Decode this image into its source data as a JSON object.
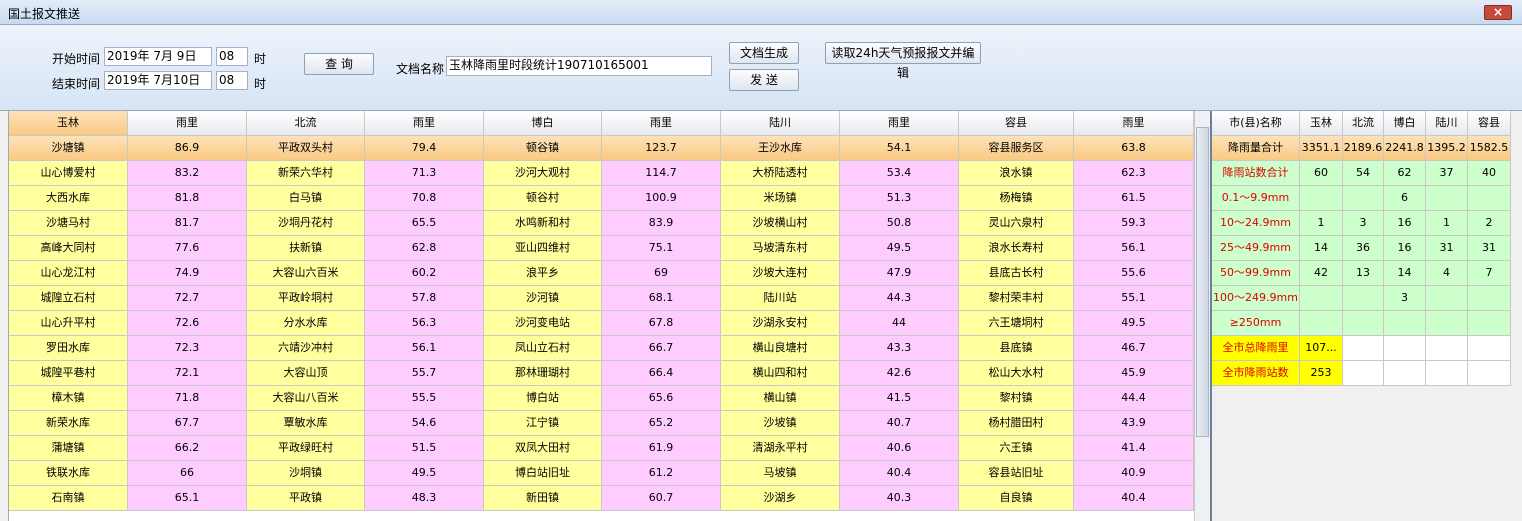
{
  "window": {
    "title": "国土报文推送"
  },
  "toolbar": {
    "start_label": "开始时间",
    "start_date": "2019年 7月 9日",
    "start_hour": "08",
    "hour_unit": "时",
    "end_label": "结束时间",
    "end_date": "2019年 7月10日",
    "end_hour": "08",
    "query_button": "查 询",
    "doc_name_label": "文档名称",
    "doc_name": "玉林降雨里时段统计190710165001",
    "generate_button": "文档生成",
    "send_button": "发 送",
    "forecast_button": "读取24h天气预报报文并编辑"
  },
  "left_table": {
    "headers": [
      "玉林",
      "雨里",
      "北流",
      "雨里",
      "博白",
      "雨里",
      "陆川",
      "雨里",
      "容县",
      "雨里"
    ],
    "rows": [
      [
        "沙塘镇",
        86.9,
        "平政双头村",
        79.4,
        "顿谷镇",
        123.7,
        "王沙水库",
        54.1,
        "容县服务区",
        63.8
      ],
      [
        "山心博爱村",
        83.2,
        "新荣六华村",
        71.3,
        "沙河大观村",
        114.7,
        "大桥陆透村",
        53.4,
        "浪水镇",
        62.3
      ],
      [
        "大西水库",
        81.8,
        "白马镇",
        70.8,
        "顿谷村",
        100.9,
        "米场镇",
        51.3,
        "杨梅镇",
        61.5
      ],
      [
        "沙塘马村",
        81.7,
        "沙垌丹花村",
        65.5,
        "水鸣新和村",
        83.9,
        "沙坡横山村",
        50.8,
        "灵山六泉村",
        59.3
      ],
      [
        "高峰大同村",
        77.6,
        "扶新镇",
        62.8,
        "亚山四维村",
        75.1,
        "马坡清东村",
        49.5,
        "浪水长寿村",
        56.1
      ],
      [
        "山心龙江村",
        74.9,
        "大容山六百米",
        60.2,
        "浪平乡",
        69,
        "沙坡大连村",
        47.9,
        "县底古长村",
        55.6
      ],
      [
        "城隍立石村",
        72.7,
        "平政岭垌村",
        57.8,
        "沙河镇",
        68.1,
        "陆川站",
        44.3,
        "黎村荣丰村",
        55.1
      ],
      [
        "山心升平村",
        72.6,
        "分水水库",
        56.3,
        "沙河变电站",
        67.8,
        "沙湖永安村",
        44,
        "六王塘垌村",
        49.5
      ],
      [
        "罗田水库",
        72.3,
        "六靖沙冲村",
        56.1,
        "凤山立石村",
        66.7,
        "横山良塘村",
        43.3,
        "县底镇",
        46.7
      ],
      [
        "城隍平巷村",
        72.1,
        "大容山顶",
        55.7,
        "那林珊瑚村",
        66.4,
        "横山四和村",
        42.6,
        "松山大水村",
        45.9
      ],
      [
        "樟木镇",
        71.8,
        "大容山八百米",
        55.5,
        "博白站",
        65.6,
        "横山镇",
        41.5,
        "黎村镇",
        44.4
      ],
      [
        "新荣水库",
        67.7,
        "覃敏水库",
        54.6,
        "江宁镇",
        65.2,
        "沙坡镇",
        40.7,
        "杨村腊田村",
        43.9
      ],
      [
        "蒲塘镇",
        66.2,
        "平政绿旺村",
        51.5,
        "双凤大田村",
        61.9,
        "清湖永平村",
        40.6,
        "六王镇",
        41.4
      ],
      [
        "铁联水库",
        66,
        "沙垌镇",
        49.5,
        "博白站旧址",
        61.2,
        "马坡镇",
        40.4,
        "容县站旧址",
        40.9
      ],
      [
        "石南镇",
        65.1,
        "平政镇",
        48.3,
        "新田镇",
        60.7,
        "沙湖乡",
        40.3,
        "自良镇",
        40.4
      ]
    ]
  },
  "right_table": {
    "headers": [
      "市(县)名称",
      "玉林",
      "北流",
      "博白",
      "陆川",
      "容县"
    ],
    "rows": [
      [
        "降雨量合计",
        3351.1,
        2189.6,
        2241.8,
        1395.2,
        1582.5
      ],
      [
        "降雨站数合计",
        60,
        54,
        62,
        37,
        40
      ],
      [
        "0.1～9.9mm",
        null,
        null,
        6,
        null,
        null
      ],
      [
        "10～24.9mm",
        1,
        3,
        16,
        1,
        2
      ],
      [
        "25～49.9mm",
        14,
        36,
        16,
        31,
        31
      ],
      [
        "50～99.9mm",
        42,
        13,
        14,
        4,
        7
      ],
      [
        "100～249.9mm",
        null,
        null,
        3,
        null,
        null
      ],
      [
        "≥250mm",
        null,
        null,
        null,
        null,
        null
      ],
      [
        "全市总降雨里",
        "107...",
        null,
        null,
        null,
        null
      ],
      [
        "全市降雨站数",
        253,
        null,
        null,
        null,
        null
      ]
    ]
  }
}
